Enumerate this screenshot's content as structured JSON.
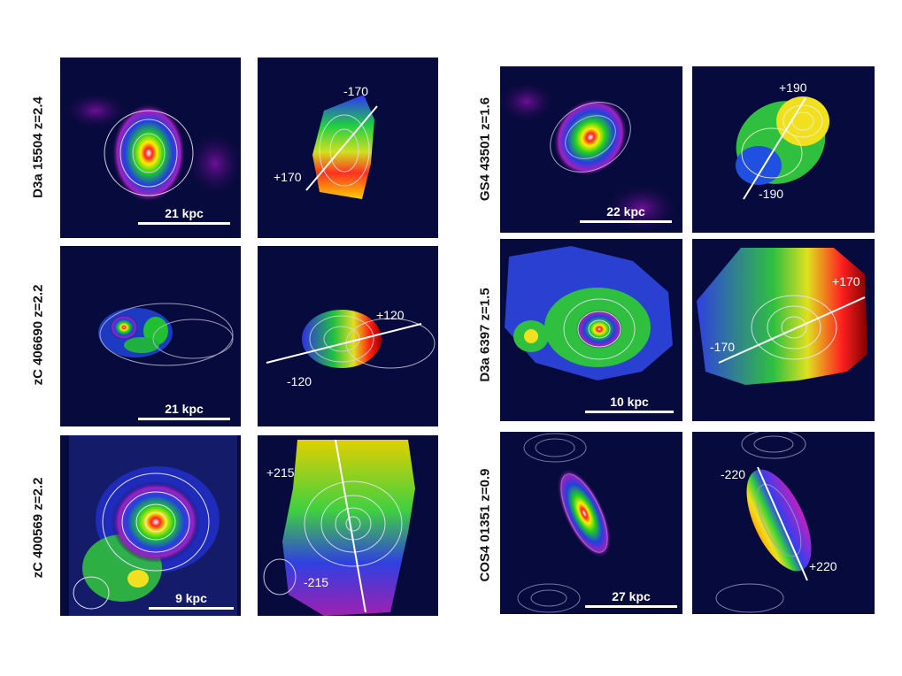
{
  "galaxies": [
    {
      "name": "D3a 15504 z=2.4",
      "scale_bar": "21 kpc",
      "velocity_labels": [
        "-170",
        "+170"
      ]
    },
    {
      "name": "zC 406690 z=2.2",
      "scale_bar": "21 kpc",
      "velocity_labels": [
        "+120",
        "-120"
      ]
    },
    {
      "name": "zC 400569 z=2.2",
      "scale_bar": "9 kpc",
      "velocity_labels": [
        "+215",
        "-215"
      ]
    },
    {
      "name": "GS4 43501 z=1.6",
      "scale_bar": "22 kpc",
      "velocity_labels": [
        "+190",
        "-190"
      ]
    },
    {
      "name": "D3a 6397 z=1.5",
      "scale_bar": "10 kpc",
      "velocity_labels": [
        "+170",
        "-170"
      ]
    },
    {
      "name": "COS4 01351 z=0.9",
      "scale_bar": "27 kpc",
      "velocity_labels": [
        "-220",
        "+220"
      ]
    }
  ]
}
